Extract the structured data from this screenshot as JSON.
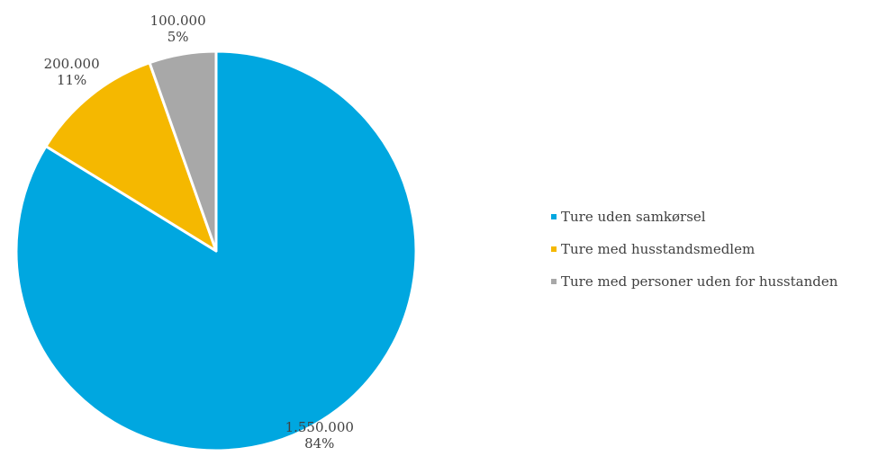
{
  "chart_data": {
    "type": "pie",
    "title": "",
    "slices": [
      {
        "name": "Ture uden samkørsel",
        "value": 1550000,
        "value_label": "1.550.000",
        "percent_label": "84%",
        "color": "#00a7e0"
      },
      {
        "name": "Ture med husstandsmedlem",
        "value": 200000,
        "value_label": "200.000",
        "percent_label": "11%",
        "color": "#f5b800"
      },
      {
        "name": "Ture med personer uden for husstanden",
        "value": 100000,
        "value_label": "100.000",
        "percent_label": "5%",
        "color": "#a8a8a8"
      }
    ],
    "legend_placement": "right",
    "start_angle": "12 o'clock",
    "direction": "clockwise"
  }
}
